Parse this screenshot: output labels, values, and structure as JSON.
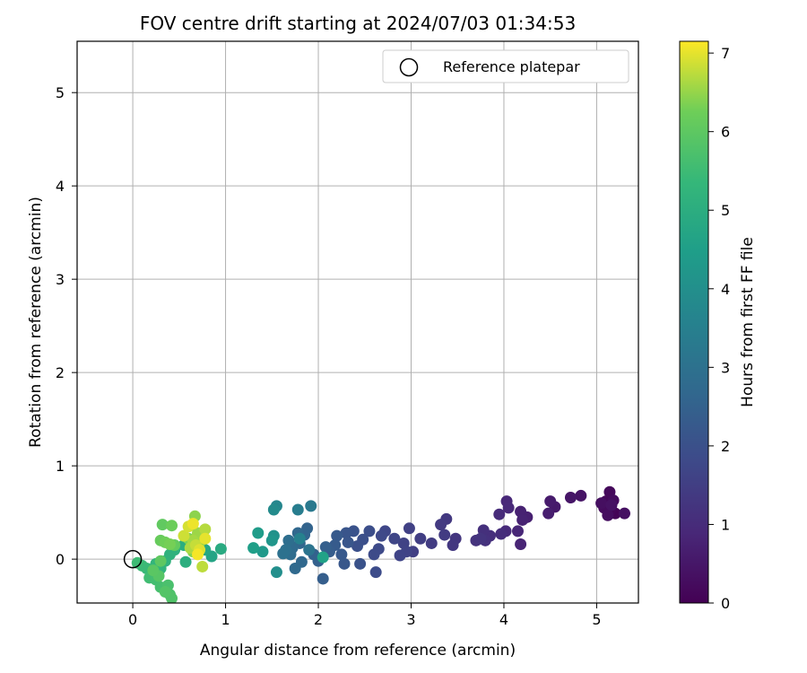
{
  "chart_data": {
    "type": "scatter",
    "title": "FOV centre drift starting at 2024/07/03 01:34:53",
    "xlabel": "Angular distance from reference (arcmin)",
    "ylabel": "Rotation from reference (arcmin)",
    "colorbar_label": "Hours from first FF file",
    "xlim": [
      -0.6,
      5.45
    ],
    "ylim": [
      -0.47,
      5.55
    ],
    "xticks": [
      "0",
      "1",
      "2",
      "3",
      "4",
      "5"
    ],
    "yticks": [
      "0",
      "1",
      "2",
      "3",
      "4",
      "5"
    ],
    "colorbar_ticks": [
      "0",
      "1",
      "2",
      "3",
      "4",
      "5",
      "6",
      "7"
    ],
    "colorbar_range": [
      0,
      7.15
    ],
    "colormap": "viridis",
    "grid": true,
    "legend": {
      "position": "top-right",
      "entries": [
        "Reference platepar"
      ]
    },
    "reference_point": {
      "name": "Reference platepar",
      "x": 0,
      "y": 0
    },
    "series": [
      {
        "points": [
          {
            "x": 5.2,
            "y": 0.49,
            "t": 0.05
          },
          {
            "x": 5.15,
            "y": 0.52,
            "t": 0.1
          },
          {
            "x": 5.1,
            "y": 0.62,
            "t": 0.15
          },
          {
            "x": 5.14,
            "y": 0.72,
            "t": 0.18
          },
          {
            "x": 5.08,
            "y": 0.55,
            "t": 0.22
          },
          {
            "x": 5.18,
            "y": 0.63,
            "t": 0.25
          },
          {
            "x": 5.12,
            "y": 0.47,
            "t": 0.28
          },
          {
            "x": 5.05,
            "y": 0.6,
            "t": 0.31
          },
          {
            "x": 5.3,
            "y": 0.49,
            "t": 0.35
          },
          {
            "x": 5.16,
            "y": 0.58,
            "t": 0.38
          },
          {
            "x": 4.83,
            "y": 0.68,
            "t": 0.42
          },
          {
            "x": 4.72,
            "y": 0.66,
            "t": 0.48
          },
          {
            "x": 4.55,
            "y": 0.56,
            "t": 0.55
          },
          {
            "x": 4.5,
            "y": 0.62,
            "t": 0.6
          },
          {
            "x": 4.48,
            "y": 0.49,
            "t": 0.66
          },
          {
            "x": 4.25,
            "y": 0.45,
            "t": 0.71
          },
          {
            "x": 4.18,
            "y": 0.51,
            "t": 0.75
          },
          {
            "x": 4.2,
            "y": 0.42,
            "t": 0.78
          },
          {
            "x": 4.18,
            "y": 0.16,
            "t": 0.82
          },
          {
            "x": 4.15,
            "y": 0.3,
            "t": 0.86
          },
          {
            "x": 4.03,
            "y": 0.62,
            "t": 0.9
          },
          {
            "x": 4.05,
            "y": 0.55,
            "t": 0.93
          },
          {
            "x": 4.02,
            "y": 0.3,
            "t": 0.96
          },
          {
            "x": 3.95,
            "y": 0.48,
            "t": 1.0
          },
          {
            "x": 3.97,
            "y": 0.27,
            "t": 1.04
          },
          {
            "x": 3.85,
            "y": 0.25,
            "t": 1.08
          },
          {
            "x": 3.78,
            "y": 0.31,
            "t": 1.12
          },
          {
            "x": 3.8,
            "y": 0.2,
            "t": 1.15
          },
          {
            "x": 3.7,
            "y": 0.2,
            "t": 1.18
          },
          {
            "x": 3.75,
            "y": 0.22,
            "t": 1.22
          },
          {
            "x": 3.48,
            "y": 0.22,
            "t": 1.26
          },
          {
            "x": 3.45,
            "y": 0.15,
            "t": 1.3
          },
          {
            "x": 3.38,
            "y": 0.43,
            "t": 1.34
          },
          {
            "x": 3.32,
            "y": 0.37,
            "t": 1.37
          },
          {
            "x": 3.36,
            "y": 0.26,
            "t": 1.4
          },
          {
            "x": 3.22,
            "y": 0.17,
            "t": 1.44
          },
          {
            "x": 3.1,
            "y": 0.22,
            "t": 1.48
          },
          {
            "x": 3.02,
            "y": 0.08,
            "t": 1.52
          },
          {
            "x": 2.98,
            "y": 0.33,
            "t": 1.56
          },
          {
            "x": 2.92,
            "y": 0.17,
            "t": 1.6
          },
          {
            "x": 2.95,
            "y": 0.08,
            "t": 1.63
          },
          {
            "x": 2.88,
            "y": 0.04,
            "t": 1.66
          },
          {
            "x": 2.82,
            "y": 0.22,
            "t": 1.7
          },
          {
            "x": 2.72,
            "y": 0.3,
            "t": 1.74
          },
          {
            "x": 2.68,
            "y": 0.25,
            "t": 1.78
          },
          {
            "x": 2.65,
            "y": 0.11,
            "t": 1.82
          },
          {
            "x": 2.6,
            "y": 0.05,
            "t": 1.85
          },
          {
            "x": 2.62,
            "y": -0.14,
            "t": 1.88
          },
          {
            "x": 2.55,
            "y": 0.3,
            "t": 1.92
          },
          {
            "x": 2.48,
            "y": 0.21,
            "t": 1.96
          },
          {
            "x": 2.42,
            "y": 0.14,
            "t": 2.0
          },
          {
            "x": 2.45,
            "y": -0.05,
            "t": 2.04
          },
          {
            "x": 2.38,
            "y": 0.3,
            "t": 2.08
          },
          {
            "x": 2.3,
            "y": 0.28,
            "t": 2.12
          },
          {
            "x": 2.32,
            "y": 0.18,
            "t": 2.16
          },
          {
            "x": 2.28,
            "y": -0.05,
            "t": 2.2
          },
          {
            "x": 2.25,
            "y": 0.05,
            "t": 2.24
          },
          {
            "x": 2.2,
            "y": 0.25,
            "t": 2.28
          },
          {
            "x": 2.18,
            "y": 0.15,
            "t": 2.32
          },
          {
            "x": 2.12,
            "y": 0.08,
            "t": 2.36
          },
          {
            "x": 2.05,
            "y": -0.21,
            "t": 2.4
          },
          {
            "x": 2.08,
            "y": 0.13,
            "t": 2.44
          },
          {
            "x": 2.0,
            "y": -0.02,
            "t": 2.48
          },
          {
            "x": 1.95,
            "y": 0.05,
            "t": 2.52
          },
          {
            "x": 1.88,
            "y": 0.33,
            "t": 2.56
          },
          {
            "x": 1.85,
            "y": 0.26,
            "t": 2.6
          },
          {
            "x": 1.8,
            "y": 0.17,
            "t": 2.64
          },
          {
            "x": 1.78,
            "y": 0.28,
            "t": 2.68
          },
          {
            "x": 1.82,
            "y": -0.03,
            "t": 2.72
          },
          {
            "x": 1.75,
            "y": -0.1,
            "t": 2.76
          },
          {
            "x": 1.72,
            "y": 0.12,
            "t": 2.8
          },
          {
            "x": 1.7,
            "y": 0.05,
            "t": 2.85
          },
          {
            "x": 1.68,
            "y": 0.2,
            "t": 2.9
          },
          {
            "x": 1.65,
            "y": 0.1,
            "t": 2.95
          },
          {
            "x": 1.62,
            "y": 0.06,
            "t": 3.0
          },
          {
            "x": 1.9,
            "y": 0.1,
            "t": 3.1
          },
          {
            "x": 1.92,
            "y": 0.57,
            "t": 3.25
          },
          {
            "x": 1.78,
            "y": 0.53,
            "t": 3.4
          },
          {
            "x": 1.8,
            "y": 0.22,
            "t": 3.55
          },
          {
            "x": 1.55,
            "y": 0.57,
            "t": 3.7
          },
          {
            "x": 1.52,
            "y": 0.53,
            "t": 3.85
          },
          {
            "x": 1.55,
            "y": -0.14,
            "t": 4.0
          },
          {
            "x": 1.52,
            "y": 0.25,
            "t": 4.1
          },
          {
            "x": 1.5,
            "y": 0.2,
            "t": 4.2
          },
          {
            "x": 1.4,
            "y": 0.08,
            "t": 4.3
          },
          {
            "x": 1.35,
            "y": 0.28,
            "t": 4.4
          },
          {
            "x": 1.3,
            "y": 0.12,
            "t": 4.5
          },
          {
            "x": 2.05,
            "y": 0.02,
            "t": 4.6
          },
          {
            "x": 0.85,
            "y": 0.03,
            "t": 4.7
          },
          {
            "x": 0.78,
            "y": 0.1,
            "t": 4.8
          },
          {
            "x": 0.95,
            "y": 0.11,
            "t": 4.9
          },
          {
            "x": 0.55,
            "y": 0.15,
            "t": 5.0
          },
          {
            "x": 0.57,
            "y": -0.03,
            "t": 5.05
          },
          {
            "x": 0.45,
            "y": 0.1,
            "t": 5.1
          },
          {
            "x": 0.4,
            "y": 0.05,
            "t": 5.15
          },
          {
            "x": 0.35,
            "y": -0.02,
            "t": 5.2
          },
          {
            "x": 0.3,
            "y": -0.1,
            "t": 5.25
          },
          {
            "x": 0.25,
            "y": -0.05,
            "t": 5.3
          },
          {
            "x": 0.2,
            "y": -0.15,
            "t": 5.35
          },
          {
            "x": 0.15,
            "y": -0.1,
            "t": 5.4
          },
          {
            "x": 0.1,
            "y": -0.07,
            "t": 5.45
          },
          {
            "x": 0.05,
            "y": -0.04,
            "t": 5.5
          },
          {
            "x": 0.18,
            "y": -0.2,
            "t": 5.55
          },
          {
            "x": 0.25,
            "y": -0.22,
            "t": 5.6
          },
          {
            "x": 0.3,
            "y": -0.3,
            "t": 5.65
          },
          {
            "x": 0.38,
            "y": -0.28,
            "t": 5.7
          },
          {
            "x": 0.4,
            "y": -0.38,
            "t": 5.75
          },
          {
            "x": 0.42,
            "y": -0.42,
            "t": 5.8
          },
          {
            "x": 0.35,
            "y": -0.35,
            "t": 5.85
          },
          {
            "x": 0.28,
            "y": -0.18,
            "t": 5.9
          },
          {
            "x": 0.22,
            "y": -0.12,
            "t": 5.95
          },
          {
            "x": 0.3,
            "y": -0.02,
            "t": 6.0
          },
          {
            "x": 0.32,
            "y": 0.37,
            "t": 6.05
          },
          {
            "x": 0.45,
            "y": 0.15,
            "t": 6.1
          },
          {
            "x": 0.3,
            "y": 0.2,
            "t": 6.15
          },
          {
            "x": 0.42,
            "y": 0.36,
            "t": 6.2
          },
          {
            "x": 0.35,
            "y": 0.18,
            "t": 6.25
          },
          {
            "x": 0.4,
            "y": 0.16,
            "t": 6.3
          },
          {
            "x": 0.6,
            "y": 0.22,
            "t": 6.35
          },
          {
            "x": 0.65,
            "y": 0.08,
            "t": 6.4
          },
          {
            "x": 0.67,
            "y": 0.46,
            "t": 6.45
          },
          {
            "x": 0.72,
            "y": 0.18,
            "t": 6.5
          },
          {
            "x": 0.7,
            "y": 0.28,
            "t": 6.55
          },
          {
            "x": 0.65,
            "y": 0.2,
            "t": 6.6
          },
          {
            "x": 0.62,
            "y": 0.12,
            "t": 6.65
          },
          {
            "x": 0.78,
            "y": 0.32,
            "t": 6.7
          },
          {
            "x": 0.75,
            "y": -0.08,
            "t": 6.75
          },
          {
            "x": 0.68,
            "y": 0.15,
            "t": 6.8
          },
          {
            "x": 0.55,
            "y": 0.25,
            "t": 6.85
          },
          {
            "x": 0.6,
            "y": 0.35,
            "t": 6.9
          },
          {
            "x": 0.72,
            "y": 0.1,
            "t": 6.95
          },
          {
            "x": 0.78,
            "y": 0.22,
            "t": 7.0
          },
          {
            "x": 0.65,
            "y": 0.38,
            "t": 7.05
          },
          {
            "x": 0.7,
            "y": 0.05,
            "t": 7.1
          }
        ]
      }
    ]
  }
}
